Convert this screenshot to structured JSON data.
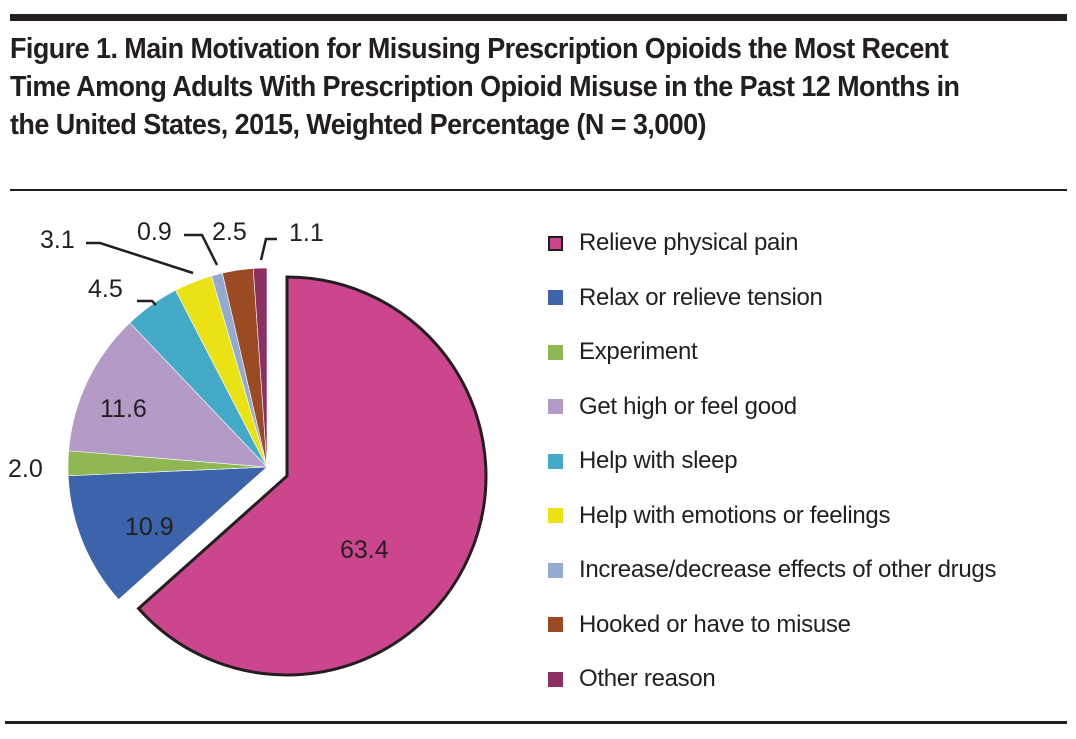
{
  "chart_data": {
    "type": "pie",
    "title": "Figure 1. Main Motivation for Misusing Prescription Opioids the Most Recent Time Among Adults With Prescription Opioid Misuse in the Past 12 Months in the United States, 2015, Weighted Percentage (N = 3,000)",
    "unit": "weighted percentage",
    "start": "top",
    "direction": "clockwise",
    "exploded_slice": "Relieve physical pain",
    "legend_position": "right",
    "slices": [
      {
        "label": "Relieve physical pain",
        "value": 63.4,
        "value_label": "63.4",
        "color": "#cc468e",
        "outlined": true
      },
      {
        "label": "Relax or relieve tension",
        "value": 10.9,
        "value_label": "10.9",
        "color": "#3d63aa"
      },
      {
        "label": "Experiment",
        "value": 2.0,
        "value_label": "2.0",
        "color": "#8fb854"
      },
      {
        "label": "Get high or feel good",
        "value": 11.6,
        "value_label": "11.6",
        "color": "#b39ac7"
      },
      {
        "label": "Help with sleep",
        "value": 4.5,
        "value_label": "4.5",
        "color": "#45aac8"
      },
      {
        "label": "Help with emotions or feelings",
        "value": 3.1,
        "value_label": "3.1",
        "color": "#ebe215"
      },
      {
        "label": "Increase/decrease effects of other drugs",
        "value": 0.9,
        "value_label": "0.9",
        "color": "#93aad3"
      },
      {
        "label": "Hooked or have to misuse",
        "value": 2.5,
        "value_label": "2.5",
        "color": "#9a4b24"
      },
      {
        "label": "Other reason",
        "value": 1.1,
        "value_label": "1.1",
        "color": "#8c2f63"
      }
    ]
  }
}
